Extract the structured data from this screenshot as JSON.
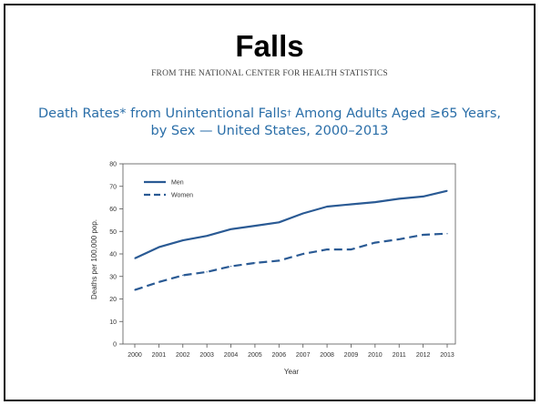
{
  "slide": {
    "title": "Falls",
    "source": "FROM THE NATIONAL CENTER FOR HEALTH STATISTICS"
  },
  "chart_data": {
    "type": "line",
    "title_line1_part1": "Death Rates* from Unintentional Falls",
    "title_line1_dagger": "†",
    "title_line1_part2": " Among Adults Aged ≥65 Years,",
    "title_line2": "by Sex — United States, 2000–2013",
    "xlabel": "Year",
    "ylabel": "Deaths per 100,000 pop.",
    "categories": [
      "2000",
      "2001",
      "2002",
      "2003",
      "2004",
      "2005",
      "2006",
      "2007",
      "2008",
      "2009",
      "2010",
      "2011",
      "2012",
      "2013"
    ],
    "ylim": [
      0,
      80
    ],
    "yticks": [
      0,
      10,
      20,
      30,
      40,
      50,
      60,
      70,
      80
    ],
    "series": [
      {
        "name": "Men",
        "style": "solid",
        "values": [
          38,
          43,
          46,
          48,
          51,
          52.5,
          54,
          58,
          61,
          62,
          63,
          64.5,
          65.5,
          68
        ]
      },
      {
        "name": "Women",
        "style": "dashed",
        "values": [
          24,
          27.5,
          30.5,
          32,
          34.5,
          36,
          37,
          40,
          42,
          42,
          45,
          46.5,
          48.5,
          49
        ]
      }
    ],
    "line_color": "#2a5a94",
    "legend_position": "top-left",
    "grid": false
  }
}
